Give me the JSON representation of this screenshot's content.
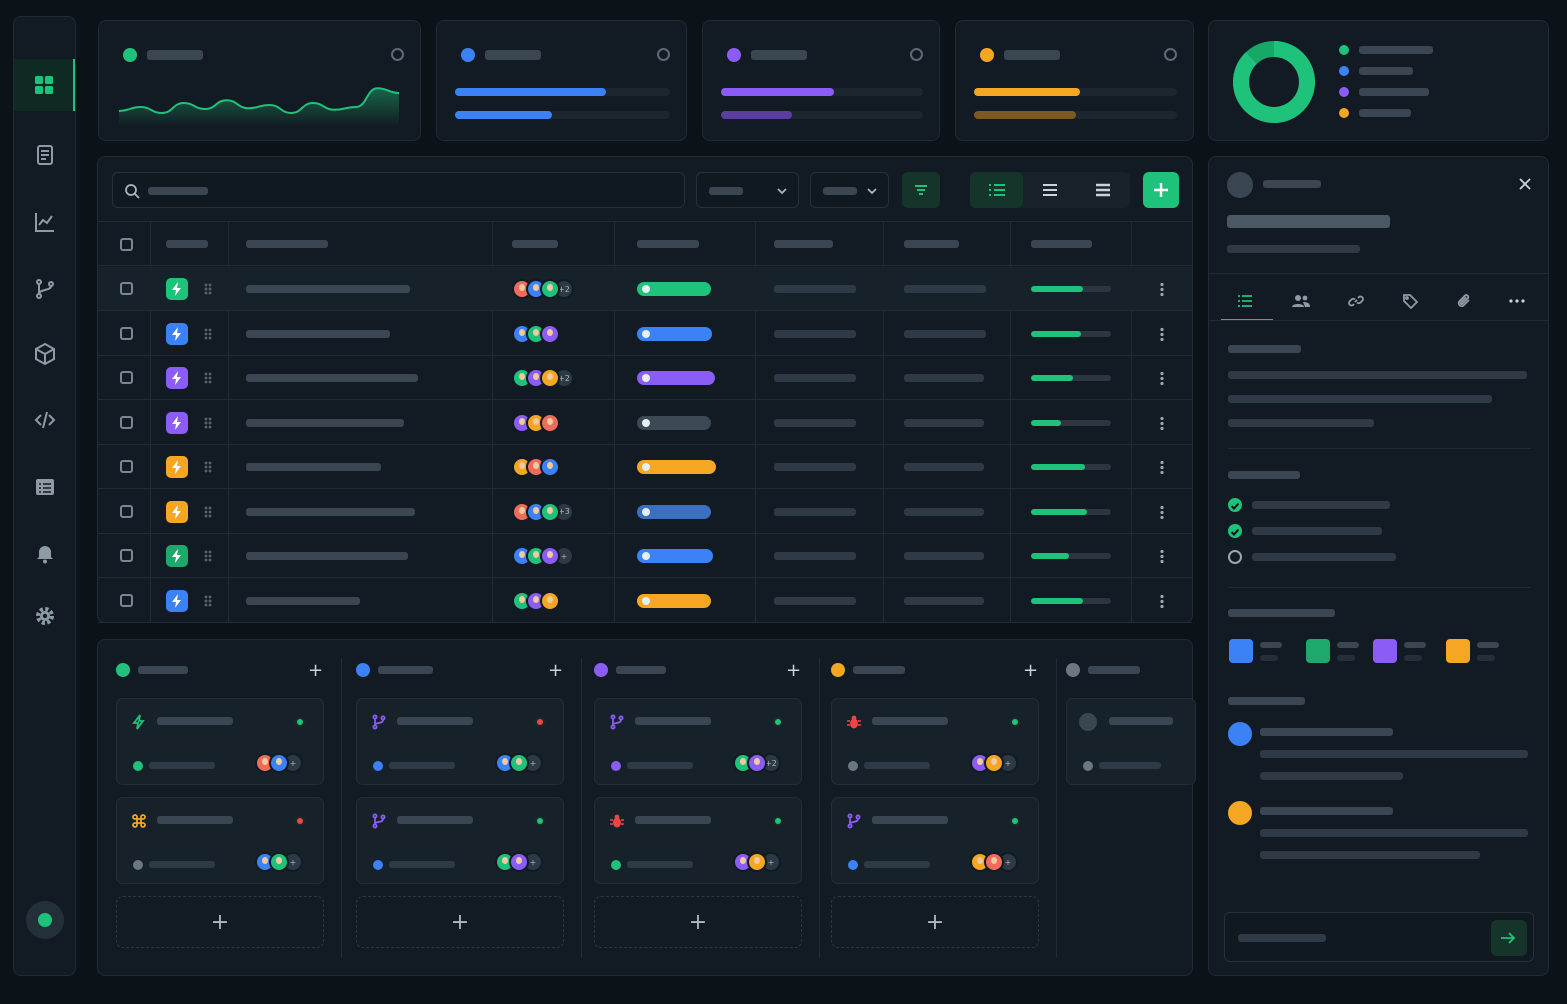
{
  "app": {
    "title": ""
  },
  "colors": {
    "accent_green": "#1fc27a",
    "blue": "#3b82f6",
    "purple": "#8b5cf6",
    "orange": "#f5a623",
    "bg": "#0b1218",
    "panel": "#121b23"
  },
  "sidebar": {
    "items": [
      {
        "icon": "grid-icon",
        "active": true
      },
      {
        "icon": "document-icon",
        "active": false
      },
      {
        "icon": "chart-line-icon",
        "active": false
      },
      {
        "icon": "git-branch-icon",
        "active": false
      },
      {
        "icon": "cube-icon",
        "active": false
      },
      {
        "icon": "code-icon",
        "active": false
      },
      {
        "icon": "table-icon",
        "active": false
      },
      {
        "icon": "bell-icon",
        "active": false
      },
      {
        "icon": "gear-icon",
        "active": false
      }
    ],
    "status": "online"
  },
  "kpis": [
    {
      "color": "#1fc27a",
      "type": "sparkline",
      "series": [
        0.35,
        0.45,
        0.3,
        0.55,
        0.4,
        0.62,
        0.42,
        0.5,
        0.3,
        0.55,
        0.38,
        0.45,
        0.92,
        0.8
      ]
    },
    {
      "color": "#3b82f6",
      "type": "bars",
      "values": [
        0.7,
        0.45
      ]
    },
    {
      "color": "#8b5cf6",
      "type": "bars",
      "values": [
        0.56,
        0.35
      ]
    },
    {
      "color": "#f5a623",
      "type": "bars",
      "values": [
        0.52,
        0.5
      ]
    }
  ],
  "donut": {
    "segments": [
      {
        "color": "#1fc27a",
        "value": 0.88
      },
      {
        "color": "#15a866",
        "value": 0.12
      }
    ],
    "legend_colors": [
      "#1fc27a",
      "#3b82f6",
      "#8b5cf6",
      "#f5a623"
    ]
  },
  "toolbar": {
    "search_placeholder": "",
    "views": [
      "list-view-icon",
      "rows-view-icon",
      "compact-view-icon"
    ],
    "active_view": 0
  },
  "table": {
    "rows": [
      {
        "type_color": "#1fc27a",
        "avatars": 3,
        "more": "+2",
        "status_color": "#1fc27a",
        "status_width": 74,
        "progress": 0.65,
        "highlight": true
      },
      {
        "type_color": "#3b82f6",
        "avatars": 3,
        "more": "",
        "status_color": "#3b82f6",
        "status_width": 75,
        "progress": 0.62
      },
      {
        "type_color": "#8b5cf6",
        "avatars": 3,
        "more": "+2",
        "status_color": "#8b5cf6",
        "status_width": 78,
        "progress": 0.52
      },
      {
        "type_color": "#8b5cf6",
        "avatars": 3,
        "more": "",
        "status_color": "#3c4954",
        "status_width": 74,
        "progress": 0.38
      },
      {
        "type_color": "#f5a623",
        "avatars": 3,
        "more": "",
        "status_color": "#f5a623",
        "status_width": 79,
        "progress": 0.68
      },
      {
        "type_color": "#f5a623",
        "avatars": 3,
        "more": "+3",
        "status_color": "#3b6fbf",
        "status_width": 74,
        "progress": 0.7
      },
      {
        "type_color": "#1fa86b",
        "avatars": 3,
        "more": "+",
        "status_color": "#3b82f6",
        "status_width": 76,
        "progress": 0.48
      },
      {
        "type_color": "#3b82f6",
        "avatars": 3,
        "more": "",
        "status_color": "#f5a623",
        "status_width": 74,
        "progress": 0.65
      }
    ]
  },
  "board": {
    "lanes": [
      {
        "color": "#1fc27a",
        "cards": [
          {
            "icon": "bolt-icon",
            "icon_color": "#1fc27a",
            "status_color": "#1fc27a",
            "dot_color": "#1fc27a",
            "more": "+"
          },
          {
            "icon": "command-icon",
            "icon_color": "#f5a623",
            "status_color": "#ef4444",
            "dot_color": "#6b7782",
            "more": "+"
          }
        ]
      },
      {
        "color": "#3b82f6",
        "cards": [
          {
            "icon": "git-branch-icon",
            "icon_color": "#8b5cf6",
            "status_color": "#ef4444",
            "dot_color": "#3b82f6",
            "more": "+"
          },
          {
            "icon": "git-branch-icon",
            "icon_color": "#8b5cf6",
            "status_color": "#1fc27a",
            "dot_color": "#3b82f6",
            "more": "+"
          }
        ]
      },
      {
        "color": "#8b5cf6",
        "cards": [
          {
            "icon": "git-branch-icon",
            "icon_color": "#8b5cf6",
            "status_color": "#1fc27a",
            "dot_color": "#8b5cf6",
            "more": "+2"
          },
          {
            "icon": "bug-icon",
            "icon_color": "#ef4444",
            "status_color": "#1fc27a",
            "dot_color": "#1fc27a",
            "more": "+"
          }
        ]
      },
      {
        "color": "#f5a623",
        "cards": [
          {
            "icon": "bug-icon",
            "icon_color": "#ef4444",
            "status_color": "#1fc27a",
            "dot_color": "#6b7782",
            "more": "+"
          },
          {
            "icon": "git-branch-icon",
            "icon_color": "#8b5cf6",
            "status_color": "#1fc27a",
            "dot_color": "#3b82f6",
            "more": "+"
          }
        ]
      },
      {
        "color": "#6b7782",
        "cards": []
      }
    ],
    "add_label": "+"
  },
  "detail": {
    "tabs": [
      "details-icon",
      "users-icon",
      "link-icon",
      "tag-icon",
      "paperclip-icon",
      "more-icon"
    ],
    "active_tab": 0,
    "checklist": [
      true,
      true,
      false
    ],
    "swatches": [
      "#3b82f6",
      "#1fa86b",
      "#8b5cf6",
      "#f5a623"
    ],
    "comments": [
      {
        "color": "#3b82f6"
      },
      {
        "color": "#f5a623"
      }
    ]
  }
}
